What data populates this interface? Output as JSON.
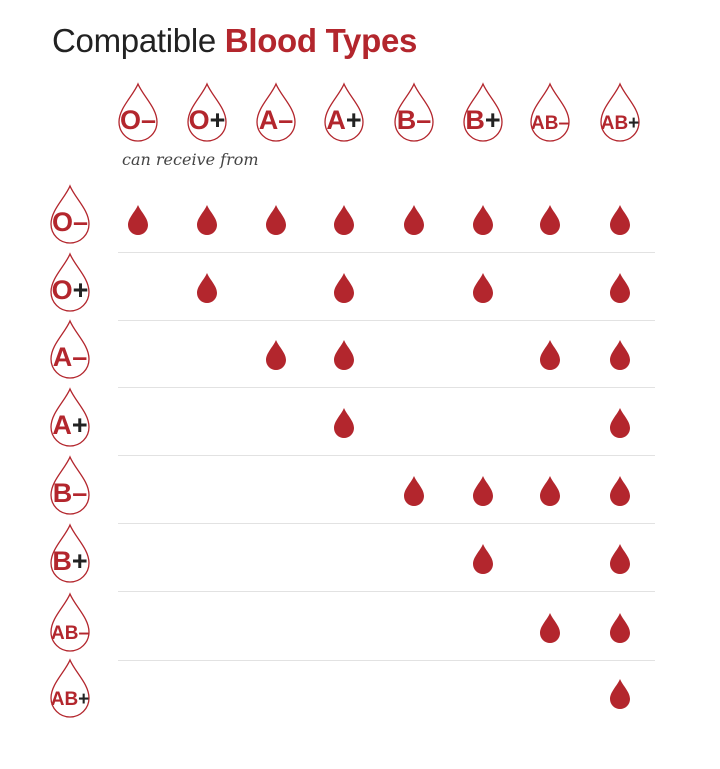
{
  "title": {
    "prefix": "Compatible",
    "highlight": "Blood Types"
  },
  "subtitle": "can receive from",
  "colors": {
    "accent": "#b3262d",
    "text": "#222222",
    "divider": "#e2e2e2"
  },
  "columns": [
    {
      "type": "O",
      "sign": "–"
    },
    {
      "type": "O",
      "sign": "+"
    },
    {
      "type": "A",
      "sign": "–"
    },
    {
      "type": "A",
      "sign": "+"
    },
    {
      "type": "B",
      "sign": "–"
    },
    {
      "type": "B",
      "sign": "+"
    },
    {
      "type": "AB",
      "sign": "–"
    },
    {
      "type": "AB",
      "sign": "+"
    }
  ],
  "rows": [
    {
      "type": "O",
      "sign": "–",
      "compatible": [
        1,
        1,
        1,
        1,
        1,
        1,
        1,
        1
      ]
    },
    {
      "type": "O",
      "sign": "+",
      "compatible": [
        0,
        1,
        0,
        1,
        0,
        1,
        0,
        1
      ]
    },
    {
      "type": "A",
      "sign": "–",
      "compatible": [
        0,
        0,
        1,
        1,
        0,
        0,
        1,
        1
      ]
    },
    {
      "type": "A",
      "sign": "+",
      "compatible": [
        0,
        0,
        0,
        1,
        0,
        0,
        0,
        1
      ]
    },
    {
      "type": "B",
      "sign": "–",
      "compatible": [
        0,
        0,
        0,
        0,
        1,
        1,
        1,
        1
      ]
    },
    {
      "type": "B",
      "sign": "+",
      "compatible": [
        0,
        0,
        0,
        0,
        0,
        1,
        0,
        1
      ]
    },
    {
      "type": "AB",
      "sign": "–",
      "compatible": [
        0,
        0,
        0,
        0,
        0,
        0,
        1,
        1
      ]
    },
    {
      "type": "AB",
      "sign": "+",
      "compatible": [
        0,
        0,
        0,
        0,
        0,
        0,
        0,
        1
      ]
    }
  ]
}
